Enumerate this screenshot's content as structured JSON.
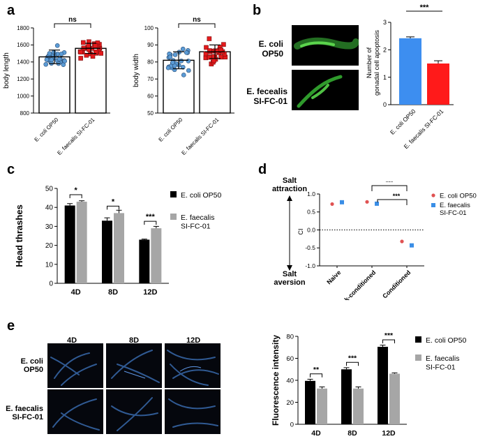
{
  "panels": {
    "a": "a",
    "b": "b",
    "c": "c",
    "d": "d",
    "e": "e"
  },
  "colors": {
    "ecoli_a": "#5b9bd5",
    "faecalis_a": "#e41a1c",
    "ecoli_b": "#3d8ef0",
    "faecalis_b": "#ff1a1a",
    "ecoli_bar": "#000000",
    "faecalis_bar": "#a6a6a6",
    "ecoli_d": "#e05252",
    "faecalis_d": "#3a8ee6"
  },
  "panel_b": {
    "row1_label": [
      "E. coli",
      "OP50"
    ],
    "row2_label": [
      "E. fecealis",
      "SI-FC-01"
    ]
  },
  "panel_d": {
    "top_label": [
      "Salt",
      "attraction"
    ],
    "bottom_label": [
      "Salt",
      "aversion"
    ]
  },
  "panel_e": {
    "col_labels": [
      "4D",
      "8D",
      "12D"
    ],
    "row1_label": [
      "E. coli",
      "OP50"
    ],
    "row2_label": [
      "E. faecalis",
      "SI-FC-01"
    ]
  },
  "chart_data": [
    {
      "id": "a1",
      "type": "scatter",
      "ylabel": "body length",
      "ylim": [
        800,
        1800
      ],
      "yticks": [
        800,
        1000,
        1200,
        1400,
        1600,
        1800
      ],
      "categories": [
        "E. coli OP50",
        "E. faecalis SI-FC-01"
      ],
      "means": [
        1460,
        1560
      ],
      "errors": [
        80,
        60
      ],
      "significance": "ns"
    },
    {
      "id": "a2",
      "type": "scatter",
      "ylabel": "body width",
      "ylim": [
        50,
        100
      ],
      "yticks": [
        50,
        60,
        70,
        80,
        90,
        100
      ],
      "categories": [
        "E. coli OP50",
        "E. faecalis SI-FC-01"
      ],
      "means": [
        81,
        86
      ],
      "errors": [
        5,
        4
      ],
      "significance": "ns"
    },
    {
      "id": "b",
      "type": "bar",
      "ylabel": "Number of gonadal cell apoptosis",
      "ylim": [
        0,
        3
      ],
      "yticks": [
        0,
        1,
        2,
        3
      ],
      "categories": [
        "E. coli OP50",
        "E. faecalis SI-FC-01"
      ],
      "values": [
        2.42,
        1.5
      ],
      "errors": [
        0.05,
        0.1
      ],
      "significance": "***"
    },
    {
      "id": "c",
      "type": "bar",
      "ylabel": "Head thrashes",
      "ylim": [
        0,
        50
      ],
      "yticks": [
        0,
        10,
        20,
        30,
        40,
        50
      ],
      "categories": [
        "4D",
        "8D",
        "12D"
      ],
      "series": [
        {
          "name": "E. coli OP50",
          "values": [
            41,
            33,
            23
          ],
          "errors": [
            1,
            1.5,
            0.3
          ]
        },
        {
          "name": "E. faecalis SI-FC-01",
          "values": [
            43,
            37,
            29
          ],
          "errors": [
            0.5,
            1.5,
            1
          ]
        }
      ],
      "significance": [
        "*",
        "*",
        "***"
      ],
      "legend": "right"
    },
    {
      "id": "d",
      "type": "scatter",
      "ylabel": "CI",
      "ylim": [
        -1.0,
        1.0
      ],
      "yticks": [
        "-1.0",
        "-0.5",
        "0.0",
        "0.5",
        "1.0"
      ],
      "categories": [
        "Naive",
        "Mock-conditioned",
        "Conditioned"
      ],
      "series": [
        {
          "name": "E. coli OP50",
          "values": [
            0.72,
            0.78,
            -0.32
          ]
        },
        {
          "name": "E. faecalis SI-FC-01",
          "values": [
            0.77,
            0.73,
            -0.43
          ]
        }
      ],
      "significance": [
        "***",
        "***"
      ],
      "legend": "right"
    },
    {
      "id": "e",
      "type": "bar",
      "ylabel": "Fluorescence intensity",
      "ylim": [
        0,
        80
      ],
      "yticks": [
        0,
        20,
        40,
        60,
        80
      ],
      "categories": [
        "4D",
        "8D",
        "12D"
      ],
      "series": [
        {
          "name": "E. coli OP50",
          "values": [
            39.5,
            50,
            70.5
          ],
          "errors": [
            1.5,
            1.5,
            1.5
          ]
        },
        {
          "name": "E. faecalis SI-FC-01",
          "values": [
            32.5,
            32.5,
            46
          ],
          "errors": [
            1.5,
            1.5,
            0.8
          ]
        }
      ],
      "significance": [
        "**",
        "***",
        "***"
      ],
      "legend": "right"
    }
  ]
}
